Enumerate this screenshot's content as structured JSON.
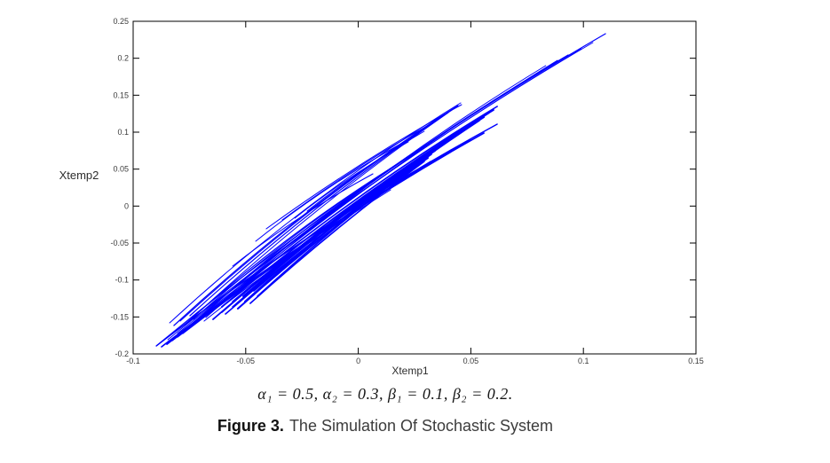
{
  "figure": {
    "ylabel": "Xtemp2",
    "xlabel": "Xtemp1"
  },
  "caption": {
    "math_line": "α₁ = 0.5, α₂ = 0.3, β₁ = 0.1, β₂ = 0.2.",
    "figure_label": "Figure 3.",
    "figure_text": "The Simulation Of Stochastic System"
  },
  "chart_data": {
    "type": "line",
    "subtype": "phase-portrait",
    "title": "",
    "xlabel": "Xtemp1",
    "ylabel": "Xtemp2",
    "xlim": [
      -0.1,
      0.15
    ],
    "ylim": [
      -0.2,
      0.25
    ],
    "xticks": [
      "-0.1",
      "-0.05",
      "0",
      "0.05",
      "0.1",
      "0.15"
    ],
    "yticks": [
      "-0.2",
      "-0.15",
      "-0.1",
      "-0.05",
      "0",
      "0.05",
      "0.1",
      "0.15",
      "0.2",
      "0.25"
    ],
    "grid": false,
    "box": true,
    "line_color": "#0000ff",
    "axis_color": "#000000",
    "tick_label_color": "#3a3a3a",
    "description": "Chaotic stochastic-system trajectory: dense bundle of thin blue arcs along the diagonal from (-0.09,-0.19) to (0.11,0.233), widest near the center, with endpoint clusters near (0.046,0.139) and (0.027,0.075).",
    "trajectory_strands": [
      [
        -0.0897,
        -0.1892,
        0.1098,
        0.2332,
        26,
        1.2
      ],
      [
        -0.0846,
        -0.1808,
        0.1042,
        0.2212,
        24,
        1
      ],
      [
        -0.0803,
        -0.1724,
        0.0991,
        0.2128,
        22,
        1
      ],
      [
        -0.0763,
        -0.1652,
        0.0932,
        0.2044,
        24,
        1.2
      ],
      [
        -0.0724,
        -0.1592,
        0.0885,
        0.1972,
        20,
        1
      ],
      [
        -0.0677,
        -0.1508,
        0.0833,
        0.19,
        22,
        1
      ],
      [
        -0.0838,
        -0.158,
        0.0455,
        0.1396,
        20,
        1
      ],
      [
        -0.0819,
        -0.1616,
        0.0443,
        0.136,
        18,
        1.2
      ],
      [
        -0.0791,
        -0.1556,
        0.0431,
        0.1336,
        16,
        1
      ],
      [
        -0.0748,
        -0.1484,
        0.0416,
        0.13,
        14,
        1.2
      ],
      [
        -0.07,
        -0.1412,
        0.04,
        0.1264,
        12,
        1
      ],
      [
        -0.0771,
        -0.1604,
        0.027,
        0.0748,
        16,
        1.2
      ],
      [
        -0.0732,
        -0.1532,
        0.0254,
        0.0724,
        14,
        1
      ],
      [
        -0.0685,
        -0.146,
        0.0238,
        0.07,
        12,
        1.2
      ],
      [
        -0.0637,
        -0.1388,
        0.0222,
        0.0676,
        10,
        1
      ],
      [
        -0.0653,
        -0.1436,
        0.0617,
        0.1348,
        16,
        1.6
      ],
      [
        -0.0606,
        -0.1364,
        0.0601,
        0.13,
        14,
        1.8
      ],
      [
        -0.0558,
        -0.1292,
        0.0577,
        0.1252,
        12,
        1.6
      ],
      [
        -0.0511,
        -0.122,
        0.0558,
        0.1204,
        12,
        2
      ],
      [
        -0.0464,
        -0.1148,
        0.0538,
        0.1156,
        10,
        1.6
      ],
      [
        -0.0606,
        -0.1436,
        0.0459,
        0.1036,
        12,
        1.8
      ],
      [
        -0.0558,
        -0.1364,
        0.0439,
        0.0988,
        10,
        1.6
      ],
      [
        -0.0503,
        -0.1292,
        0.042,
        0.094,
        10,
        2
      ],
      [
        -0.0448,
        -0.122,
        0.04,
        0.0892,
        8,
        1.6
      ],
      [
        -0.0645,
        -0.1532,
        0.0341,
        0.0748,
        10,
        1.8
      ],
      [
        -0.059,
        -0.146,
        0.0325,
        0.07,
        8,
        1.6
      ],
      [
        -0.0535,
        -0.1388,
        0.0309,
        0.0652,
        8,
        2
      ],
      [
        -0.048,
        -0.1316,
        0.0293,
        0.0604,
        6,
        1.6
      ],
      [
        -0.0897,
        -0.1892,
        0.0617,
        0.1108,
        18,
        1.4
      ],
      [
        -0.0874,
        -0.1904,
        0.0558,
        0.0988,
        16,
        1.6
      ],
      [
        -0.085,
        -0.1868,
        0.0498,
        0.0892,
        14,
        1.8
      ],
      [
        -0.0827,
        -0.182,
        0.0439,
        0.0796,
        12,
        1.6
      ],
      [
        -0.0803,
        -0.1772,
        0.038,
        0.07,
        10,
        1.4
      ],
      [
        -0.0779,
        -0.1724,
        0.0321,
        0.0604,
        8,
        1.2
      ],
      [
        -0.0456,
        -0.0476,
        0.0262,
        0.0964,
        10,
        1
      ],
      [
        -0.0409,
        -0.0308,
        0.0459,
        0.1372,
        8,
        1
      ],
      [
        -0.0338,
        -0.0188,
        0.0348,
        0.1156,
        7,
        1
      ],
      [
        -0.0282,
        -0.0164,
        0.0222,
        0.0868,
        6,
        1
      ],
      [
        -0.0227,
        -0.0068,
        0.0293,
        0.1012,
        6,
        1
      ],
      [
        -0.0558,
        -0.0812,
        0.0065,
        0.0436,
        8,
        1
      ],
      [
        -0.0763,
        -0.1652,
        0.0065,
        0.0124,
        10,
        1
      ],
      [
        -0.0685,
        -0.1556,
        0.0144,
        0.022,
        8,
        1
      ]
    ]
  }
}
